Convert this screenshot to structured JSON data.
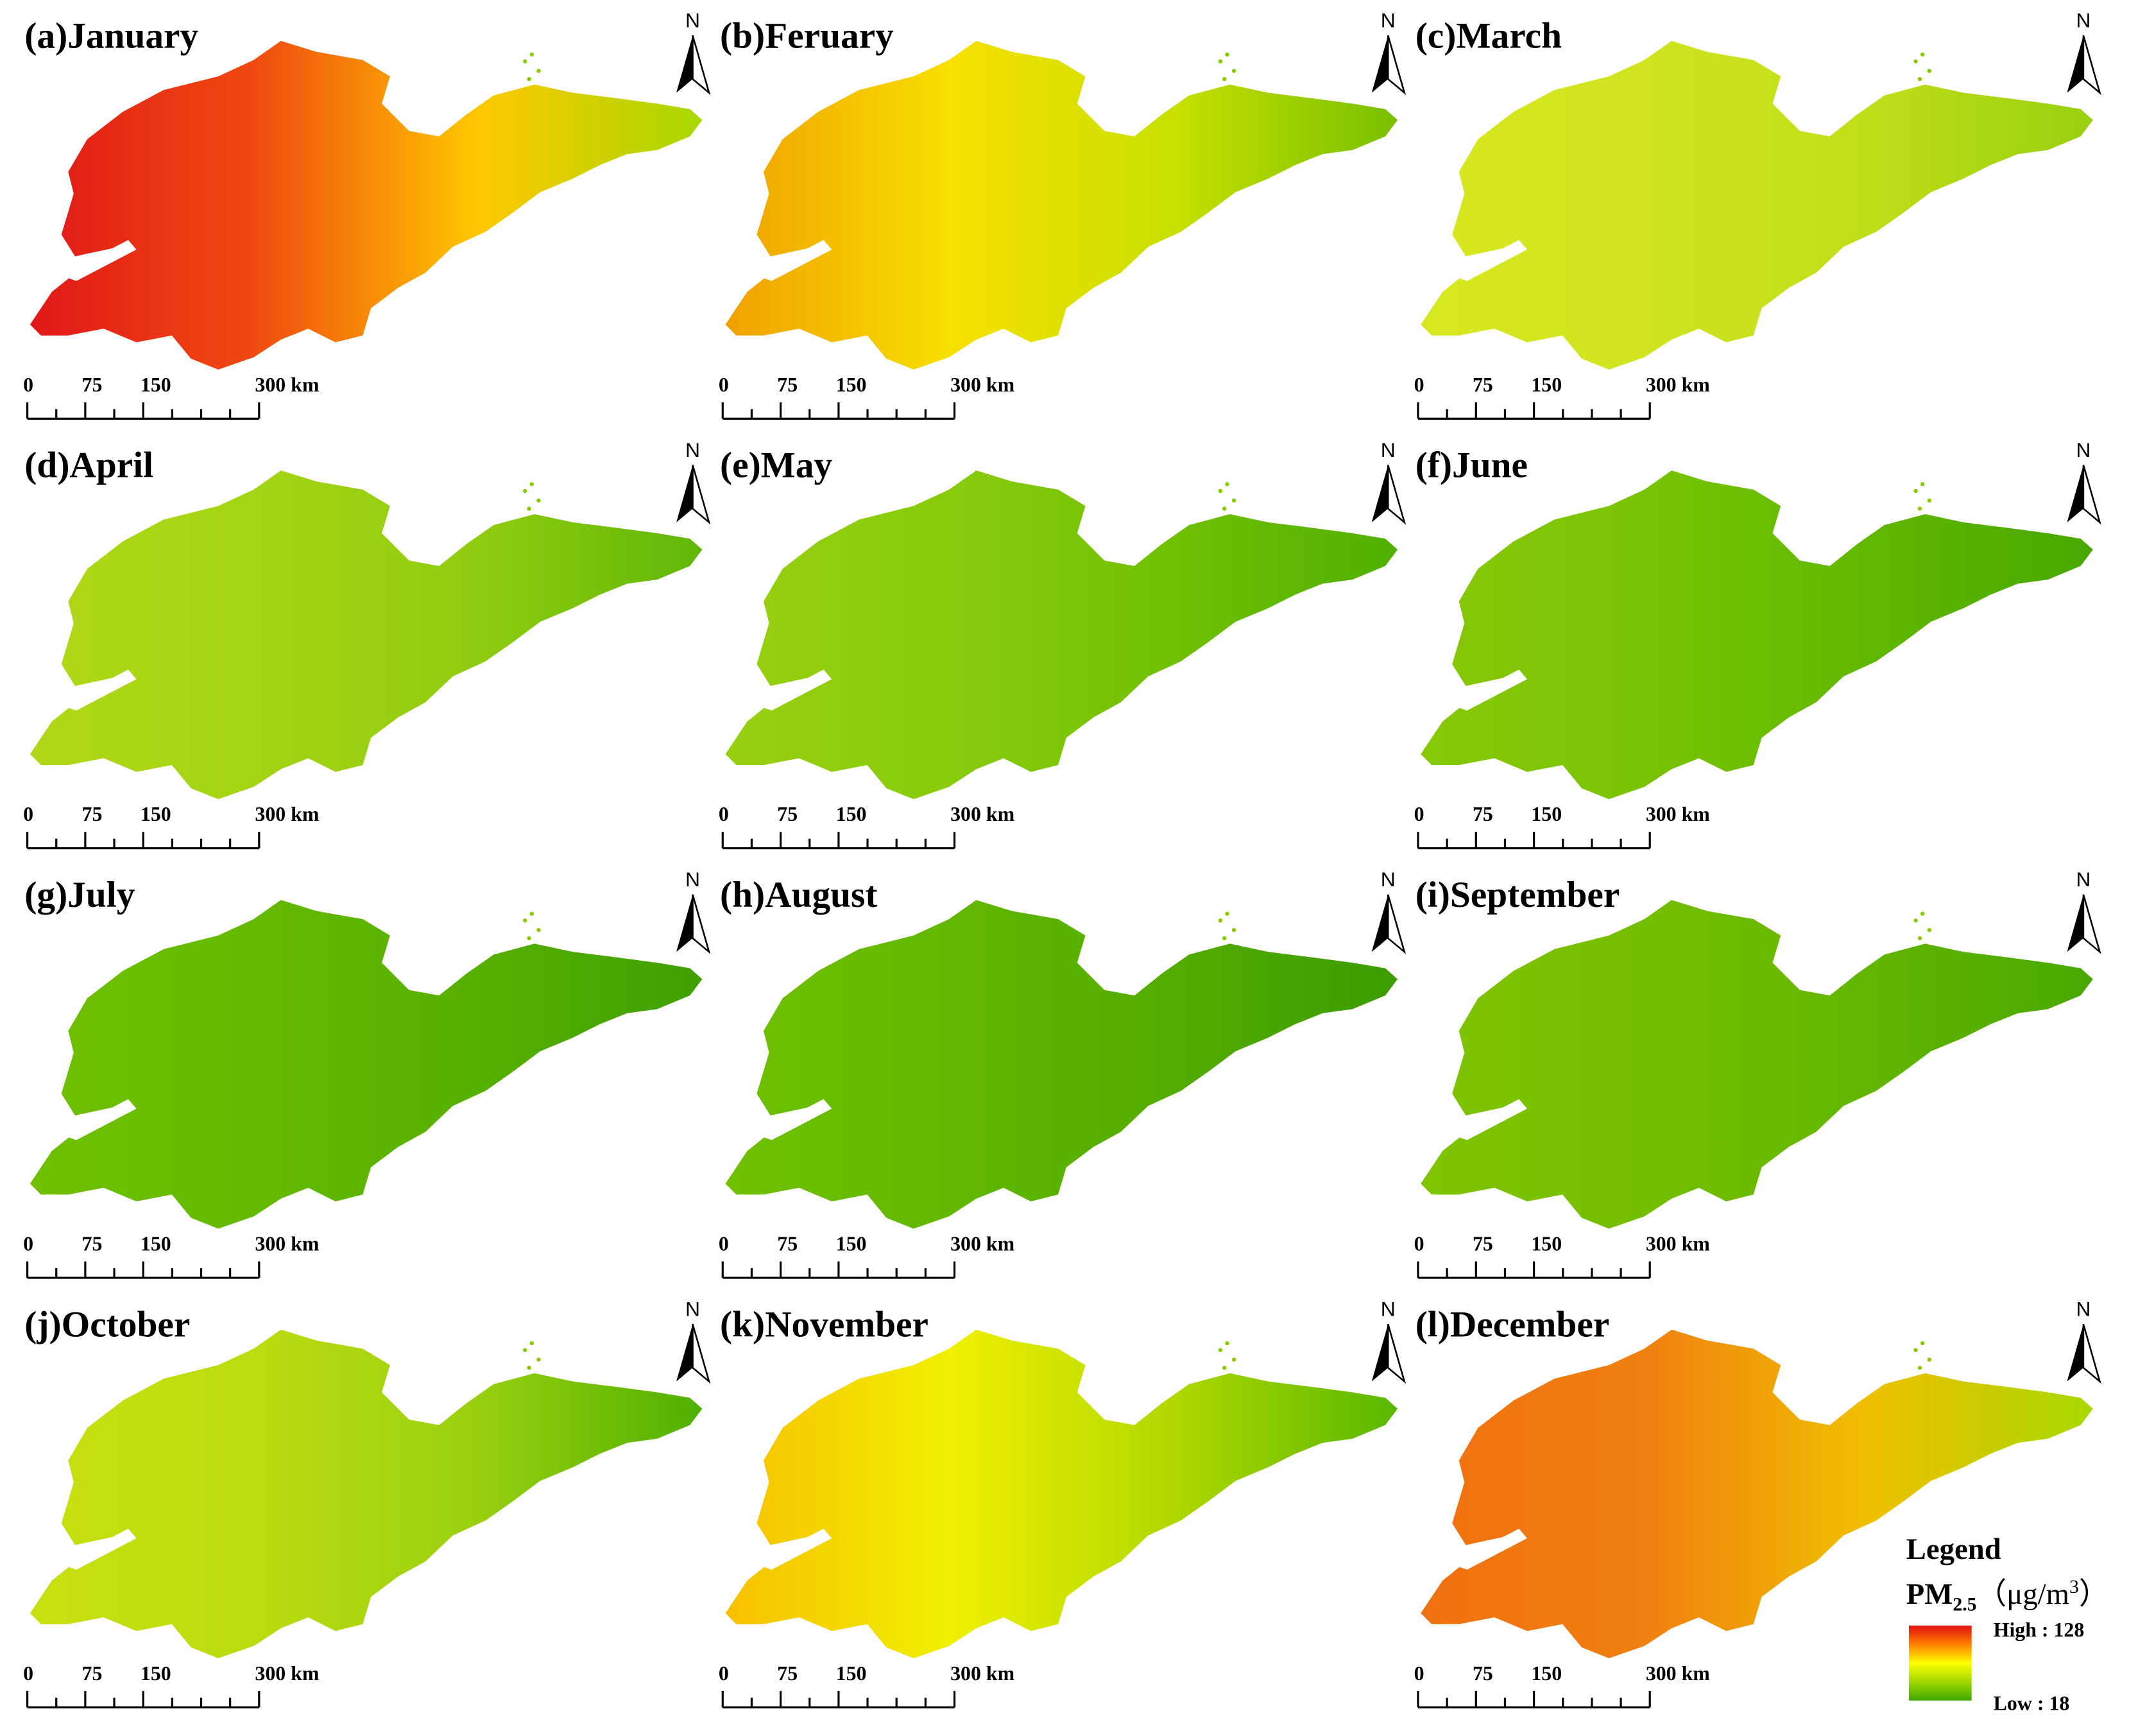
{
  "panels": [
    {
      "title": "(a)January"
    },
    {
      "title": "(b)Feruary"
    },
    {
      "title": "(c)March"
    },
    {
      "title": "(d)April"
    },
    {
      "title": "(e)May"
    },
    {
      "title": "(f)June"
    },
    {
      "title": "(g)July"
    },
    {
      "title": "(h)August"
    },
    {
      "title": "(i)September"
    },
    {
      "title": "(j)October"
    },
    {
      "title": "(k)November"
    },
    {
      "title": "(l)December"
    }
  ],
  "scale_bar": {
    "labels": [
      "0",
      "75",
      "150",
      "300 km"
    ]
  },
  "north_label": "N",
  "legend": {
    "title": "Legend",
    "quantity": {
      "base": "PM",
      "subscript": "2.5",
      "unit": "（μg/m",
      "superscript": "3",
      "close": "）"
    },
    "high": "High : 128",
    "low": "Low : 18"
  }
}
